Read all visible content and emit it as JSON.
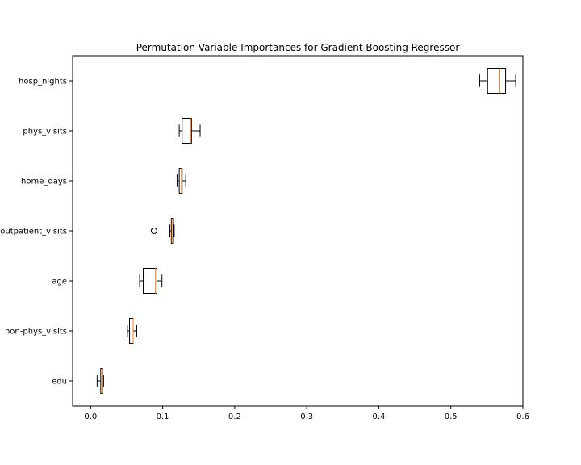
{
  "chart_data": {
    "type": "boxplot",
    "orientation": "horizontal",
    "title": "Permutation Variable Importances for Gradient Boosting Regressor",
    "xlabel": "",
    "ylabel": "",
    "xlim": [
      -0.025,
      0.6
    ],
    "xticks": [
      0.0,
      0.1,
      0.2,
      0.3,
      0.4,
      0.5,
      0.6
    ],
    "xtick_labels": [
      "0.0",
      "0.1",
      "0.2",
      "0.3",
      "0.4",
      "0.5",
      "0.6"
    ],
    "grid": false,
    "box_color": "#000000",
    "median_color": "#ff7f0e",
    "categories": [
      "hosp_nights",
      "phys_visits",
      "home_days",
      "outpatient_visits",
      "age",
      "non-phys_visits",
      "edu"
    ],
    "boxes": [
      {
        "label": "hosp_nights",
        "whislo": 0.54,
        "q1": 0.551,
        "med": 0.568,
        "q3": 0.576,
        "whishi": 0.59,
        "fliers": []
      },
      {
        "label": "phys_visits",
        "whislo": 0.123,
        "q1": 0.127,
        "med": 0.139,
        "q3": 0.14,
        "whishi": 0.152,
        "fliers": []
      },
      {
        "label": "home_days",
        "whislo": 0.12,
        "q1": 0.123,
        "med": 0.126,
        "q3": 0.127,
        "whishi": 0.132,
        "fliers": []
      },
      {
        "label": "outpatient_visits",
        "whislo": 0.11,
        "q1": 0.112,
        "med": 0.113,
        "q3": 0.115,
        "whishi": 0.116,
        "fliers": [
          0.088
        ]
      },
      {
        "label": "age",
        "whislo": 0.068,
        "q1": 0.073,
        "med": 0.09,
        "q3": 0.092,
        "whishi": 0.099,
        "fliers": []
      },
      {
        "label": "non-phys_visits",
        "whislo": 0.051,
        "q1": 0.054,
        "med": 0.059,
        "q3": 0.059,
        "whishi": 0.064,
        "fliers": []
      },
      {
        "label": "edu",
        "whislo": 0.009,
        "q1": 0.014,
        "med": 0.017,
        "q3": 0.017,
        "whishi": 0.018,
        "fliers": []
      }
    ]
  }
}
